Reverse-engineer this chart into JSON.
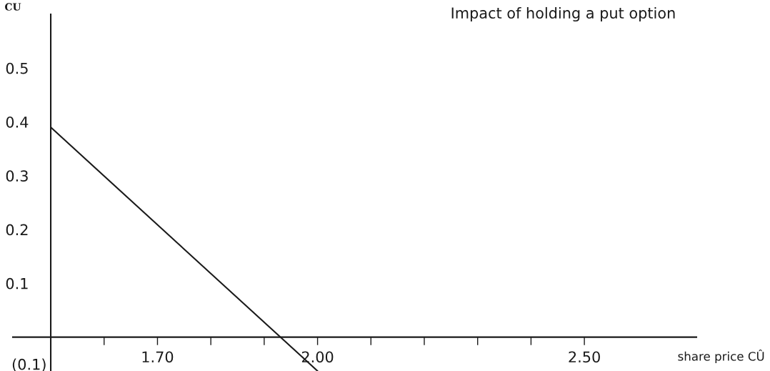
{
  "chart_data": {
    "type": "line",
    "title": "Impact of holding a put option",
    "xlabel": "share price CÛ",
    "ylabel": "CU",
    "x": [
      1.5,
      2.0
    ],
    "series": [
      {
        "color": "#1a1a1a",
        "values": [
          0.39,
          -0.063
        ]
      }
    ],
    "xlim": [
      1.429,
      2.71
    ],
    "ylim": [
      -0.063,
      0.6
    ],
    "xticks": [
      {
        "value": 1.6,
        "label": null
      },
      {
        "value": 1.7,
        "label": "1.70"
      },
      {
        "value": 1.8,
        "label": null
      },
      {
        "value": 1.9,
        "label": null
      },
      {
        "value": 2.0,
        "label": "2.00"
      },
      {
        "value": 2.1,
        "label": null
      },
      {
        "value": 2.2,
        "label": null
      },
      {
        "value": 2.3,
        "label": null
      },
      {
        "value": 2.4,
        "label": null
      },
      {
        "value": 2.5,
        "label": "2.50"
      }
    ],
    "yticks": [
      0.1,
      0.2,
      0.3,
      0.4,
      0.5
    ],
    "annotations": [
      "(0.1)"
    ],
    "grid": false,
    "marker": "none",
    "line_style": "solid"
  }
}
